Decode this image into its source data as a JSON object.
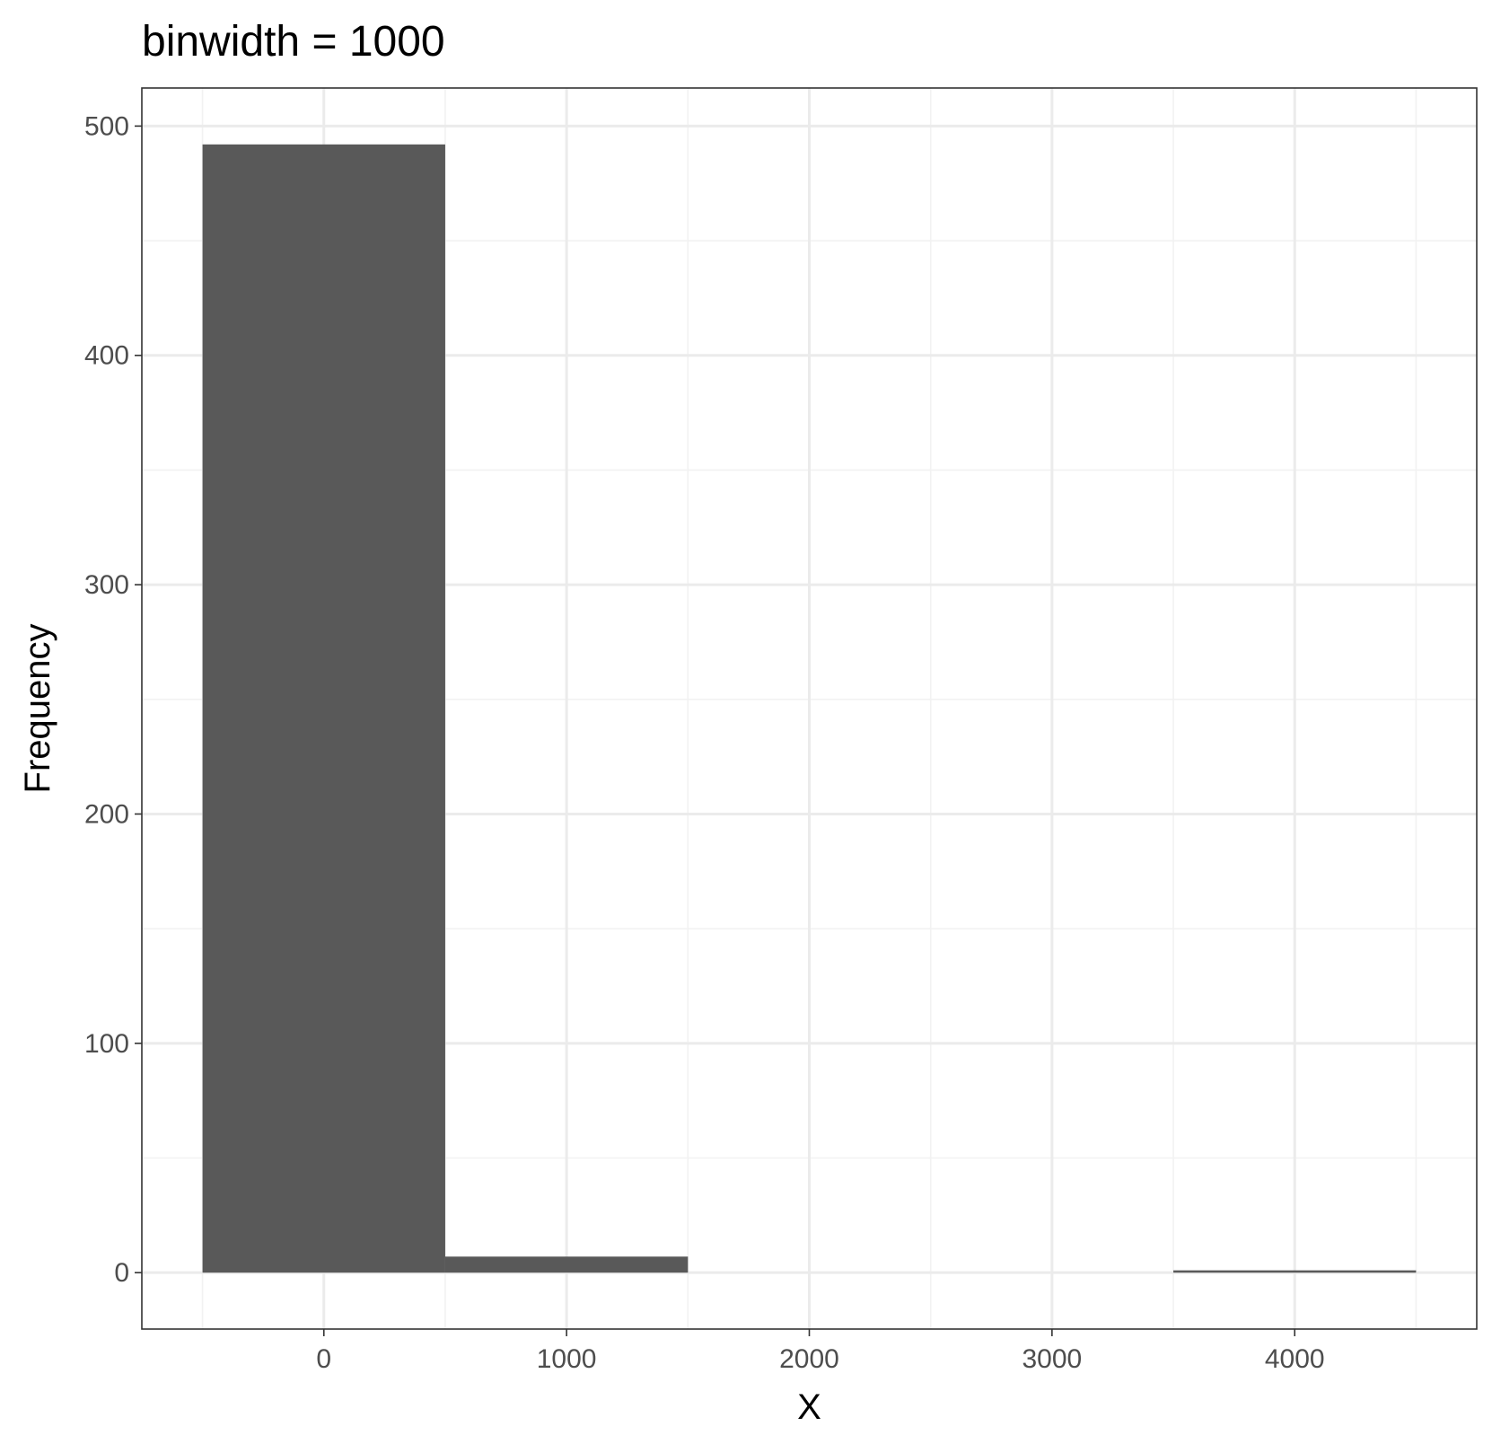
{
  "chart_data": {
    "type": "bar",
    "subtype": "histogram",
    "title": "binwidth = 1000",
    "xlabel": "X",
    "ylabel": "Frequency",
    "bins": [
      {
        "x_start": -500,
        "x_end": 500,
        "center": 0,
        "count": 492
      },
      {
        "x_start": 500,
        "x_end": 1500,
        "center": 1000,
        "count": 7
      },
      {
        "x_start": 1500,
        "x_end": 2500,
        "center": 2000,
        "count": 0
      },
      {
        "x_start": 2500,
        "x_end": 3500,
        "center": 3000,
        "count": 0
      },
      {
        "x_start": 3500,
        "x_end": 4500,
        "center": 4000,
        "count": 1
      }
    ],
    "xlim": [
      -750,
      4750
    ],
    "ylim": [
      -24.6,
      516.6
    ],
    "x_ticks": [
      0,
      1000,
      2000,
      3000,
      4000
    ],
    "x_tick_labels": [
      "0",
      "1000",
      "2000",
      "3000",
      "4000"
    ],
    "y_ticks": [
      0,
      100,
      200,
      300,
      400,
      500
    ],
    "y_tick_labels": [
      "0",
      "100",
      "200",
      "300",
      "400",
      "500"
    ],
    "grid": true,
    "legend": "none",
    "colors": {
      "bar_fill": "#595959",
      "panel_background": "#ffffff",
      "grid_major": "#ebebeb",
      "grid_minor": "#f2f2f2",
      "panel_border": "#333333",
      "tick_label": "#4d4d4d",
      "text": "#000000"
    }
  }
}
